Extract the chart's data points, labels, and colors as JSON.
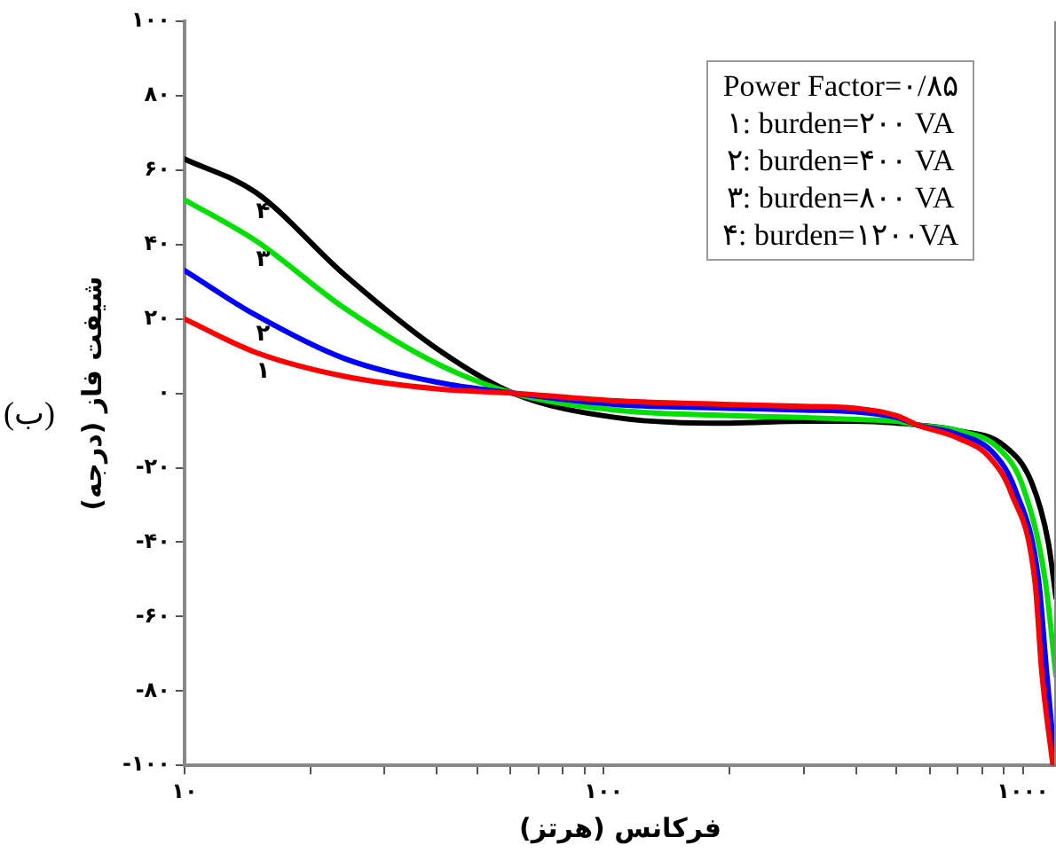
{
  "chart_data": {
    "type": "line",
    "title": "(ب)",
    "xlabel": "فرکانس (هرتز)",
    "ylabel": "شیفت فاز (درجه)",
    "log": "x",
    "xlim": [
      10,
      1200
    ],
    "ylim": [
      -100,
      100
    ],
    "xticks": [
      {
        "value": 10,
        "label": "۱۰"
      },
      {
        "value": 20,
        "label": null
      },
      {
        "value": 30,
        "label": null
      },
      {
        "value": 40,
        "label": null
      },
      {
        "value": 50,
        "label": null
      },
      {
        "value": 60,
        "label": null
      },
      {
        "value": 70,
        "label": null
      },
      {
        "value": 80,
        "label": null
      },
      {
        "value": 90,
        "label": null
      },
      {
        "value": 100,
        "label": "۱۰۰"
      },
      {
        "value": 200,
        "label": null
      },
      {
        "value": 300,
        "label": null
      },
      {
        "value": 400,
        "label": null
      },
      {
        "value": 500,
        "label": null
      },
      {
        "value": 600,
        "label": null
      },
      {
        "value": 700,
        "label": null
      },
      {
        "value": 800,
        "label": null
      },
      {
        "value": 900,
        "label": null
      },
      {
        "value": 1000,
        "label": "۱۰۰۰"
      }
    ],
    "yticks": [
      {
        "value": -100,
        "label": "-۱۰۰"
      },
      {
        "value": -80,
        "label": "-۸۰"
      },
      {
        "value": -60,
        "label": "-۶۰"
      },
      {
        "value": -40,
        "label": "-۴۰"
      },
      {
        "value": -20,
        "label": "-۲۰"
      },
      {
        "value": 0,
        "label": "۰"
      },
      {
        "value": 20,
        "label": "۲۰"
      },
      {
        "value": 40,
        "label": "۴۰"
      },
      {
        "value": 60,
        "label": "۶۰"
      },
      {
        "value": 80,
        "label": "۸۰"
      },
      {
        "value": 100,
        "label": "۱۰۰"
      }
    ],
    "grid": false,
    "legend": false,
    "marker": "none",
    "line_style": "solid",
    "series": [
      {
        "name": "۱",
        "color": "#ff0000",
        "x": [
          10,
          14.8,
          24,
          40,
          61,
          107,
          200,
          300,
          400,
          500,
          560,
          700,
          830,
          940,
          1070,
          1110,
          1180
        ],
        "values": [
          20,
          11,
          4.6,
          1.2,
          0,
          -2,
          -3,
          -3.5,
          -4,
          -6,
          -8.5,
          -12,
          -17,
          -27,
          -51,
          -75,
          -100
        ]
      },
      {
        "name": "۲",
        "color": "#0000ff",
        "x": [
          10,
          14.8,
          24,
          40,
          61,
          107,
          200,
          300,
          400,
          500,
          560,
          700,
          850,
          960,
          1090,
          1140,
          1195
        ],
        "values": [
          33,
          21,
          9.4,
          3,
          0,
          -3,
          -4,
          -4.5,
          -5,
          -6.5,
          -8.5,
          -11,
          -16,
          -26,
          -50,
          -75,
          -100
        ]
      },
      {
        "name": "۳",
        "color": "#00e000",
        "x": [
          10,
          14.8,
          24,
          40,
          61,
          107,
          200,
          300,
          400,
          500,
          560,
          700,
          880,
          1000,
          1130,
          1200
        ],
        "values": [
          52,
          41,
          23,
          8,
          0,
          -4.5,
          -6,
          -6.5,
          -7,
          -7.5,
          -8.5,
          -10,
          -15,
          -25,
          -50,
          -76
        ]
      },
      {
        "name": "۴",
        "color": "#000000",
        "x": [
          10,
          14.8,
          24,
          40,
          61,
          107,
          200,
          300,
          400,
          500,
          560,
          700,
          900,
          1050,
          1150,
          1200
        ],
        "values": [
          63,
          54,
          32,
          12,
          0,
          -6.5,
          -8,
          -7.5,
          -7.5,
          -8,
          -8.5,
          -10,
          -14,
          -24,
          -40,
          -55
        ]
      }
    ],
    "annotations": [
      "Power Factor=۰/۸۵",
      "۱: burden=۲۰۰ VA",
      "۲: burden=۴۰۰ VA",
      "۳: burden=۸۰۰ VA",
      "۴: burden=۱۲۰۰VA"
    ]
  }
}
